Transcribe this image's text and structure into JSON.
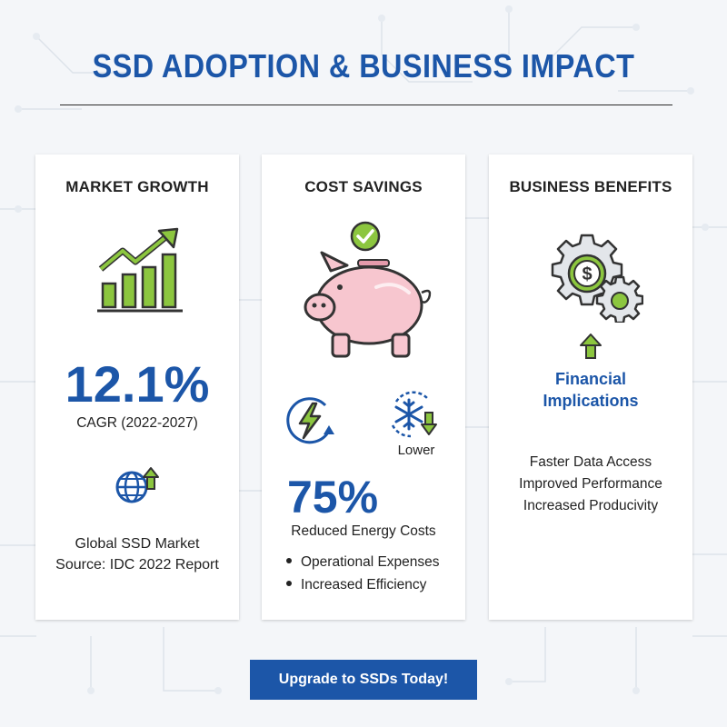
{
  "header": {
    "title": "SSD ADOPTION & BUSINESS IMPACT"
  },
  "cards": [
    {
      "title": "MARKET GROWTH",
      "stat": "12.1%",
      "stat_label": "CAGR (2022-2027)",
      "lines": [
        "Global SSD Market",
        "Source: IDC 2022 Report"
      ],
      "icons": [
        "bar-chart-growth-icon",
        "globe-upload-icon"
      ]
    },
    {
      "title": "COST SAVINGS",
      "stat": "75%",
      "stat_label": "Reduced Energy Costs",
      "lower_label": "Lower",
      "bullets": [
        "Operational Expenses",
        "Increased Efficiency"
      ],
      "icons": [
        "checkmark-icon",
        "piggy-bank-icon",
        "energy-bolt-icon",
        "snowflake-down-icon"
      ]
    },
    {
      "title": "BUSINESS BENEFITS",
      "subtitle_line1": "Financial",
      "subtitle_line2": "Implications",
      "lines": [
        "Faster Data Access",
        "Improved Performance",
        "Increased Producivity"
      ],
      "icons": [
        "gears-dollar-icon",
        "arrow-up-icon"
      ]
    }
  ],
  "cta": {
    "label": "Upgrade to SSDs Today!"
  },
  "colors": {
    "brand_blue": "#1c56a8",
    "accent_green": "#6db33f",
    "pig_pink": "#f7c6cf",
    "background": "#f4f6f9"
  }
}
